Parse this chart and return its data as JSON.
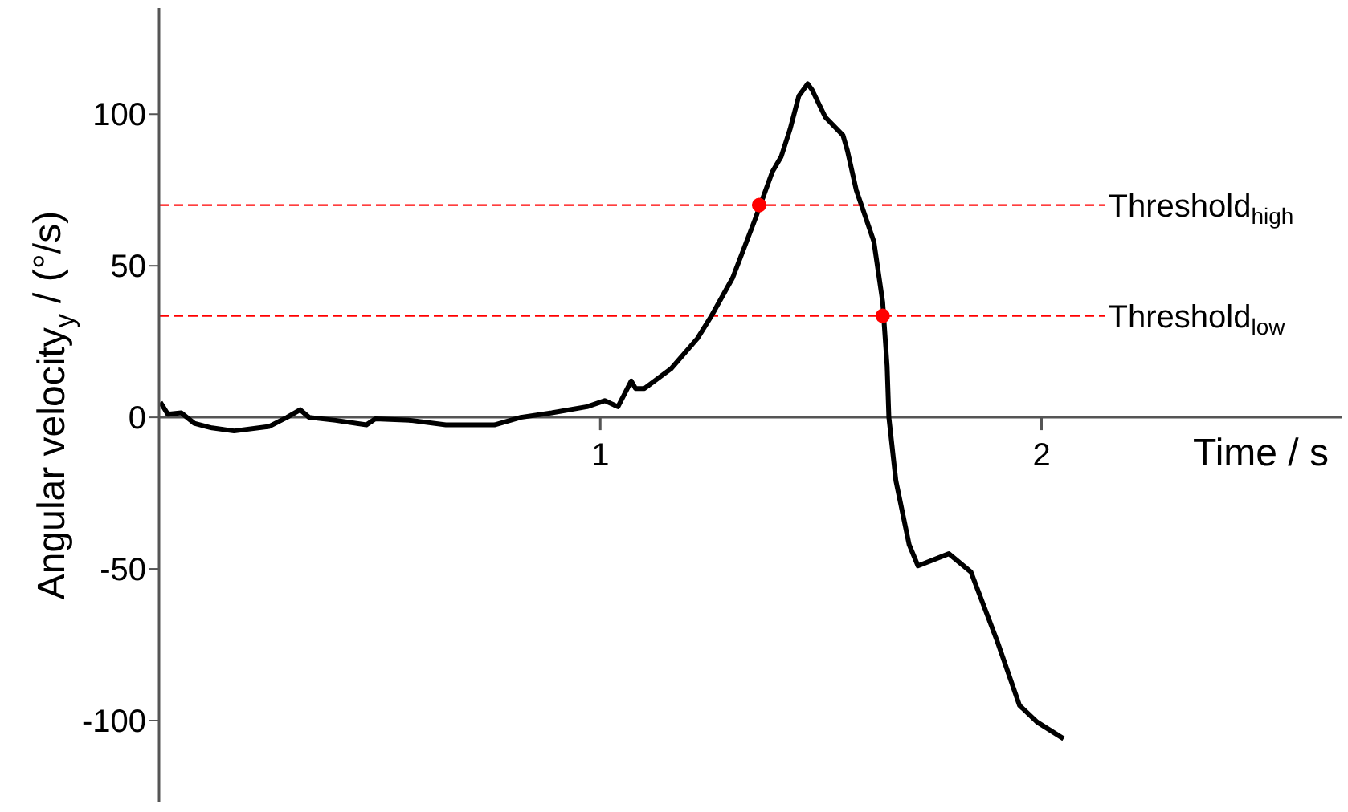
{
  "chart_data": {
    "type": "line",
    "xlabel": "Time / s",
    "ylabel": "Angular velocity$_{y}$ / (°/s)",
    "xlim": [
      0,
      2.68
    ],
    "xticks": [
      1,
      2
    ],
    "ylim": [
      -127,
      135
    ],
    "yticks": [
      -100,
      -50,
      0,
      50,
      100
    ],
    "series": [
      {
        "color": "#000000",
        "marker": "none",
        "line_style": "solid",
        "x": [
          0.003,
          0.02,
          0.05,
          0.08,
          0.12,
          0.17,
          0.25,
          0.29,
          0.32,
          0.34,
          0.4,
          0.47,
          0.49,
          0.57,
          0.65,
          0.76,
          0.82,
          0.89,
          0.97,
          1.01,
          1.04,
          1.07,
          1.08,
          1.1,
          1.16,
          1.22,
          1.25,
          1.3,
          1.35,
          1.39,
          1.41,
          1.43,
          1.45,
          1.47,
          1.48,
          1.51,
          1.55,
          1.56,
          1.58,
          1.62,
          1.64,
          1.65,
          1.654,
          1.67,
          1.7,
          1.72,
          1.79,
          1.84,
          1.9,
          1.95,
          1.99,
          2.05
        ],
        "values": [
          5,
          1,
          1.5,
          -2,
          -3.5,
          -4.5,
          -3,
          0,
          2.5,
          0,
          -1,
          -2.5,
          -0.5,
          -1,
          -2.5,
          -2.5,
          0,
          1.5,
          3.5,
          5.5,
          3.5,
          12,
          9.5,
          9.5,
          16,
          26,
          33,
          46,
          65,
          81,
          86,
          95,
          106,
          110,
          108,
          99,
          93,
          88,
          75,
          58,
          38,
          17,
          0,
          -21,
          -42,
          -49,
          -45,
          -51,
          -74,
          -95,
          -100.5,
          -106
        ]
      },
      {
        "type": "scatter",
        "color": "#ff0000",
        "marker": "circle",
        "x": [
          1.36,
          1.64
        ],
        "values": [
          70,
          33.5
        ]
      }
    ],
    "ref_lines": [
      {
        "axis": "y",
        "value": 70,
        "label": "Threshold$_{high}$",
        "color": "#ff0000",
        "line_style": "dashed"
      },
      {
        "axis": "y",
        "value": 33.5,
        "label": "Threshold$_{low}$",
        "color": "#ff0000",
        "line_style": "dashed"
      }
    ]
  }
}
